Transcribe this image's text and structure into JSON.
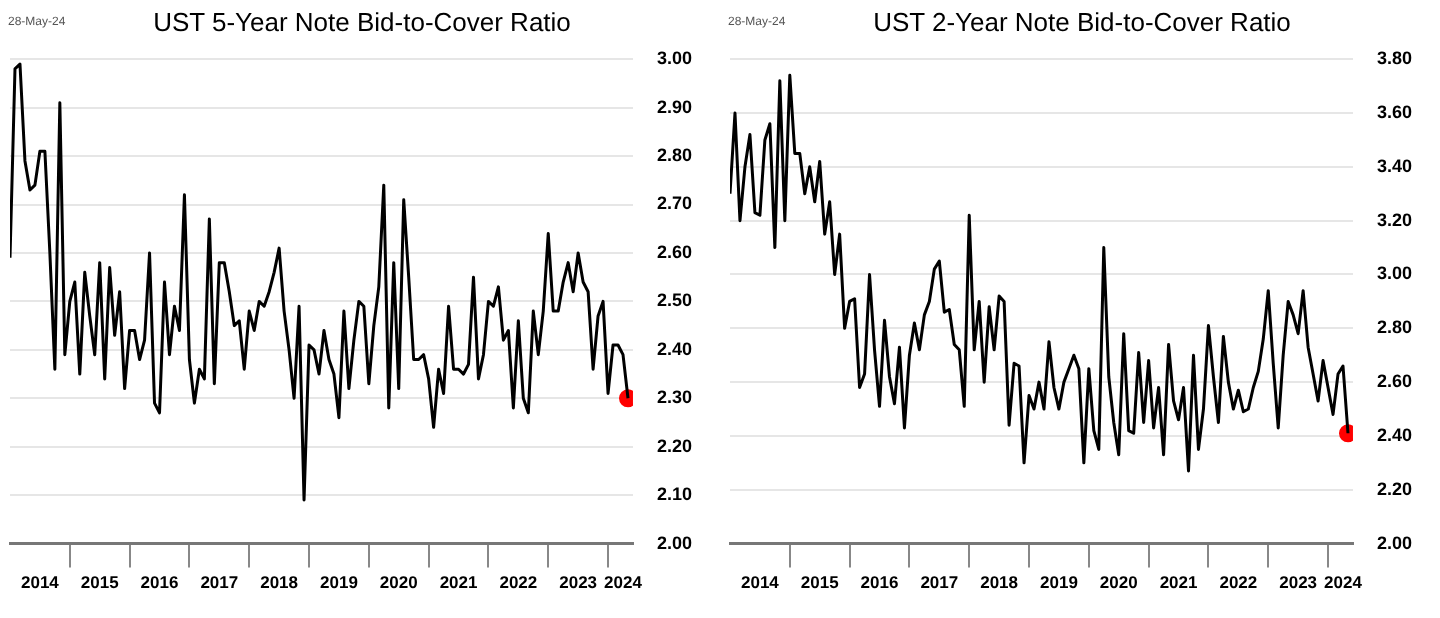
{
  "chart_data": [
    {
      "type": "line",
      "title": "UST 5-Year Note Bid-to-Cover Ratio",
      "annotations": [
        "28-May-24"
      ],
      "x": [
        "2014-01",
        "2014-02",
        "2014-03",
        "2014-04",
        "2014-05",
        "2014-06",
        "2014-07",
        "2014-08",
        "2014-09",
        "2014-10",
        "2014-11",
        "2014-12",
        "2015-01",
        "2015-02",
        "2015-03",
        "2015-04",
        "2015-05",
        "2015-06",
        "2015-07",
        "2015-08",
        "2015-09",
        "2015-10",
        "2015-11",
        "2015-12",
        "2016-01",
        "2016-02",
        "2016-03",
        "2016-04",
        "2016-05",
        "2016-06",
        "2016-07",
        "2016-08",
        "2016-09",
        "2016-10",
        "2016-11",
        "2016-12",
        "2017-01",
        "2017-02",
        "2017-03",
        "2017-04",
        "2017-05",
        "2017-06",
        "2017-07",
        "2017-08",
        "2017-09",
        "2017-10",
        "2017-11",
        "2017-12",
        "2018-01",
        "2018-02",
        "2018-03",
        "2018-04",
        "2018-05",
        "2018-06",
        "2018-07",
        "2018-08",
        "2018-09",
        "2018-10",
        "2018-11",
        "2018-12",
        "2019-01",
        "2019-02",
        "2019-03",
        "2019-04",
        "2019-05",
        "2019-06",
        "2019-07",
        "2019-08",
        "2019-09",
        "2019-10",
        "2019-11",
        "2019-12",
        "2020-01",
        "2020-02",
        "2020-03",
        "2020-04",
        "2020-05",
        "2020-06",
        "2020-07",
        "2020-08",
        "2020-09",
        "2020-10",
        "2020-11",
        "2020-12",
        "2021-01",
        "2021-02",
        "2021-03",
        "2021-04",
        "2021-05",
        "2021-06",
        "2021-07",
        "2021-08",
        "2021-09",
        "2021-10",
        "2021-11",
        "2021-12",
        "2022-01",
        "2022-02",
        "2022-03",
        "2022-04",
        "2022-05",
        "2022-06",
        "2022-07",
        "2022-08",
        "2022-09",
        "2022-10",
        "2022-11",
        "2022-12",
        "2023-01",
        "2023-02",
        "2023-03",
        "2023-04",
        "2023-05",
        "2023-06",
        "2023-07",
        "2023-08",
        "2023-09",
        "2023-10",
        "2023-11",
        "2023-12",
        "2024-01",
        "2024-02",
        "2024-03",
        "2024-04",
        "2024-05"
      ],
      "series": [
        {
          "marker": "none",
          "color": "#000000",
          "values": [
            2.59,
            2.98,
            2.99,
            2.79,
            2.73,
            2.74,
            2.81,
            2.81,
            2.6,
            2.36,
            2.91,
            2.39,
            2.5,
            2.54,
            2.35,
            2.56,
            2.47,
            2.39,
            2.58,
            2.34,
            2.57,
            2.43,
            2.52,
            2.32,
            2.44,
            2.44,
            2.38,
            2.42,
            2.6,
            2.29,
            2.27,
            2.54,
            2.39,
            2.49,
            2.44,
            2.72,
            2.38,
            2.29,
            2.36,
            2.34,
            2.67,
            2.33,
            2.58,
            2.58,
            2.52,
            2.45,
            2.46,
            2.36,
            2.48,
            2.44,
            2.5,
            2.49,
            2.52,
            2.56,
            2.61,
            2.48,
            2.4,
            2.3,
            2.49,
            2.09,
            2.41,
            2.4,
            2.35,
            2.44,
            2.38,
            2.35,
            2.26,
            2.48,
            2.32,
            2.42,
            2.5,
            2.49,
            2.33,
            2.45,
            2.53,
            2.74,
            2.28,
            2.58,
            2.32,
            2.71,
            2.55,
            2.38,
            2.38,
            2.39,
            2.34,
            2.24,
            2.36,
            2.31,
            2.49,
            2.36,
            2.36,
            2.35,
            2.37,
            2.55,
            2.34,
            2.39,
            2.5,
            2.49,
            2.53,
            2.42,
            2.44,
            2.28,
            2.46,
            2.3,
            2.27,
            2.48,
            2.39,
            2.48,
            2.64,
            2.48,
            2.48,
            2.54,
            2.58,
            2.52,
            2.6,
            2.54,
            2.52,
            2.36,
            2.47,
            2.5,
            2.31,
            2.41,
            2.41,
            2.39,
            2.3
          ]
        },
        {
          "type": "scatter",
          "marker": "circle",
          "color": "#ff0000",
          "x": [
            "2024-05"
          ],
          "values": [
            2.3
          ]
        }
      ],
      "xlim": [
        "2014-01",
        "2024-06"
      ],
      "xticks": [
        {
          "value": "2014-07",
          "label": "2014"
        },
        {
          "value": "2015-01",
          "label": null
        },
        {
          "value": "2015-07",
          "label": "2015"
        },
        {
          "value": "2016-01",
          "label": null
        },
        {
          "value": "2016-07",
          "label": "2016"
        },
        {
          "value": "2017-01",
          "label": null
        },
        {
          "value": "2017-07",
          "label": "2017"
        },
        {
          "value": "2018-01",
          "label": null
        },
        {
          "value": "2018-07",
          "label": "2018"
        },
        {
          "value": "2019-01",
          "label": null
        },
        {
          "value": "2019-07",
          "label": "2019"
        },
        {
          "value": "2020-01",
          "label": null
        },
        {
          "value": "2020-07",
          "label": "2020"
        },
        {
          "value": "2021-01",
          "label": null
        },
        {
          "value": "2021-07",
          "label": "2021"
        },
        {
          "value": "2022-01",
          "label": null
        },
        {
          "value": "2022-07",
          "label": "2022"
        },
        {
          "value": "2023-01",
          "label": null
        },
        {
          "value": "2023-07",
          "label": "2023"
        },
        {
          "value": "2024-01",
          "label": null
        },
        {
          "value": "2024-04",
          "label": "2024"
        }
      ],
      "ylim": [
        2.0,
        3.0
      ],
      "yticks": [
        {
          "value": 2.0,
          "label": "2.00"
        },
        {
          "value": 2.1,
          "label": "2.10"
        },
        {
          "value": 2.2,
          "label": "2.20"
        },
        {
          "value": 2.3,
          "label": "2.30"
        },
        {
          "value": 2.4,
          "label": "2.40"
        },
        {
          "value": 2.5,
          "label": "2.50"
        },
        {
          "value": 2.6,
          "label": "2.60"
        },
        {
          "value": 2.7,
          "label": "2.70"
        },
        {
          "value": 2.8,
          "label": "2.80"
        },
        {
          "value": 2.9,
          "label": "2.90"
        },
        {
          "value": 3.0,
          "label": "3.00"
        }
      ],
      "grid": "y"
    },
    {
      "type": "line",
      "title": "UST 2-Year Note Bid-to-Cover Ratio",
      "annotations": [
        "28-May-24"
      ],
      "x": [
        "2014-01",
        "2014-02",
        "2014-03",
        "2014-04",
        "2014-05",
        "2014-06",
        "2014-07",
        "2014-08",
        "2014-09",
        "2014-10",
        "2014-11",
        "2014-12",
        "2015-01",
        "2015-02",
        "2015-03",
        "2015-04",
        "2015-05",
        "2015-06",
        "2015-07",
        "2015-08",
        "2015-09",
        "2015-10",
        "2015-11",
        "2015-12",
        "2016-01",
        "2016-02",
        "2016-03",
        "2016-04",
        "2016-05",
        "2016-06",
        "2016-07",
        "2016-08",
        "2016-09",
        "2016-10",
        "2016-11",
        "2016-12",
        "2017-01",
        "2017-02",
        "2017-03",
        "2017-04",
        "2017-05",
        "2017-06",
        "2017-07",
        "2017-08",
        "2017-09",
        "2017-10",
        "2017-11",
        "2017-12",
        "2018-01",
        "2018-02",
        "2018-03",
        "2018-04",
        "2018-05",
        "2018-06",
        "2018-07",
        "2018-08",
        "2018-09",
        "2018-10",
        "2018-11",
        "2018-12",
        "2019-01",
        "2019-02",
        "2019-03",
        "2019-04",
        "2019-05",
        "2019-06",
        "2019-07",
        "2019-08",
        "2019-09",
        "2019-10",
        "2019-11",
        "2019-12",
        "2020-01",
        "2020-02",
        "2020-03",
        "2020-04",
        "2020-05",
        "2020-06",
        "2020-07",
        "2020-08",
        "2020-09",
        "2020-10",
        "2020-11",
        "2020-12",
        "2021-01",
        "2021-02",
        "2021-03",
        "2021-04",
        "2021-05",
        "2021-06",
        "2021-07",
        "2021-08",
        "2021-09",
        "2021-10",
        "2021-11",
        "2021-12",
        "2022-01",
        "2022-02",
        "2022-03",
        "2022-04",
        "2022-05",
        "2022-06",
        "2022-07",
        "2022-08",
        "2022-09",
        "2022-10",
        "2022-11",
        "2022-12",
        "2023-01",
        "2023-02",
        "2023-03",
        "2023-04",
        "2023-05",
        "2023-06",
        "2023-07",
        "2023-08",
        "2023-09",
        "2023-10",
        "2023-11",
        "2023-12",
        "2024-01",
        "2024-02",
        "2024-03",
        "2024-04",
        "2024-05"
      ],
      "series": [
        {
          "marker": "none",
          "color": "#000000",
          "values": [
            3.3,
            3.6,
            3.2,
            3.4,
            3.52,
            3.23,
            3.22,
            3.5,
            3.56,
            3.1,
            3.72,
            3.2,
            3.74,
            3.45,
            3.45,
            3.3,
            3.4,
            3.27,
            3.42,
            3.15,
            3.27,
            3.0,
            3.15,
            2.8,
            2.9,
            2.91,
            2.58,
            2.63,
            3.0,
            2.72,
            2.51,
            2.83,
            2.62,
            2.52,
            2.73,
            2.43,
            2.7,
            2.82,
            2.72,
            2.85,
            2.9,
            3.02,
            3.05,
            2.86,
            2.87,
            2.74,
            2.72,
            2.51,
            3.22,
            2.72,
            2.9,
            2.6,
            2.88,
            2.72,
            2.92,
            2.9,
            2.44,
            2.67,
            2.66,
            2.3,
            2.55,
            2.5,
            2.6,
            2.5,
            2.75,
            2.58,
            2.5,
            2.6,
            2.65,
            2.7,
            2.65,
            2.3,
            2.65,
            2.42,
            2.35,
            3.1,
            2.62,
            2.45,
            2.33,
            2.78,
            2.42,
            2.41,
            2.71,
            2.45,
            2.68,
            2.43,
            2.58,
            2.33,
            2.74,
            2.53,
            2.46,
            2.58,
            2.27,
            2.7,
            2.35,
            2.5,
            2.81,
            2.62,
            2.45,
            2.77,
            2.6,
            2.5,
            2.57,
            2.49,
            2.5,
            2.58,
            2.64,
            2.76,
            2.94,
            2.67,
            2.43,
            2.7,
            2.9,
            2.85,
            2.78,
            2.94,
            2.73,
            2.63,
            2.53,
            2.68,
            2.58,
            2.48,
            2.63,
            2.66,
            2.41
          ]
        },
        {
          "type": "scatter",
          "marker": "circle",
          "color": "#ff0000",
          "x": [
            "2024-05"
          ],
          "values": [
            2.41
          ]
        }
      ],
      "xlim": [
        "2014-01",
        "2024-06"
      ],
      "xticks": [
        {
          "value": "2014-07",
          "label": "2014"
        },
        {
          "value": "2015-01",
          "label": null
        },
        {
          "value": "2015-07",
          "label": "2015"
        },
        {
          "value": "2016-01",
          "label": null
        },
        {
          "value": "2016-07",
          "label": "2016"
        },
        {
          "value": "2017-01",
          "label": null
        },
        {
          "value": "2017-07",
          "label": "2017"
        },
        {
          "value": "2018-01",
          "label": null
        },
        {
          "value": "2018-07",
          "label": "2018"
        },
        {
          "value": "2019-01",
          "label": null
        },
        {
          "value": "2019-07",
          "label": "2019"
        },
        {
          "value": "2020-01",
          "label": null
        },
        {
          "value": "2020-07",
          "label": "2020"
        },
        {
          "value": "2021-01",
          "label": null
        },
        {
          "value": "2021-07",
          "label": "2021"
        },
        {
          "value": "2022-01",
          "label": null
        },
        {
          "value": "2022-07",
          "label": "2022"
        },
        {
          "value": "2023-01",
          "label": null
        },
        {
          "value": "2023-07",
          "label": "2023"
        },
        {
          "value": "2024-01",
          "label": null
        },
        {
          "value": "2024-04",
          "label": "2024"
        }
      ],
      "ylim": [
        2.0,
        3.8
      ],
      "yticks": [
        {
          "value": 2.0,
          "label": "2.00"
        },
        {
          "value": 2.2,
          "label": "2.20"
        },
        {
          "value": 2.4,
          "label": "2.40"
        },
        {
          "value": 2.6,
          "label": "2.60"
        },
        {
          "value": 2.8,
          "label": "2.80"
        },
        {
          "value": 3.0,
          "label": "3.00"
        },
        {
          "value": 3.2,
          "label": "3.20"
        },
        {
          "value": 3.4,
          "label": "3.40"
        },
        {
          "value": 3.6,
          "label": "3.60"
        },
        {
          "value": 3.8,
          "label": "3.80"
        }
      ],
      "grid": "y"
    }
  ]
}
